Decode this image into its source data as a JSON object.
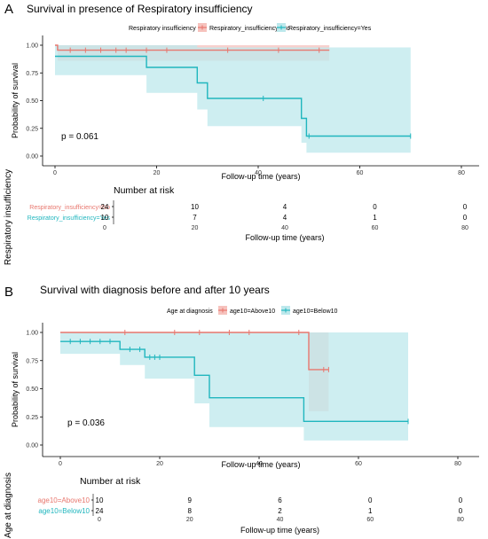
{
  "colors": {
    "red": "#e8776e",
    "teal": "#20b6be",
    "red_fill": "#f6c2bd",
    "teal_fill": "#bde8ec",
    "overlap_fill": "#bcbcbc"
  },
  "panels": [
    {
      "letter": "A",
      "title": "Survival in presence of Respiratory insufficiency",
      "legend_title": "Respiratory insufficiency",
      "pvalue": "p = 0.061",
      "risk_title": "Number at risk",
      "strata_axis_label": "Respiratory insufficiency"
    },
    {
      "letter": "B",
      "title": "Survival with diagnosis before and after 10 years",
      "legend_title": "Age at diagnosis",
      "pvalue": "p = 0.036",
      "risk_title": "Number at risk",
      "strata_axis_label": "Age at diagnosis"
    }
  ],
  "chart_data": [
    {
      "type": "line",
      "subtype": "kaplan-meier",
      "title": "Survival in presence of Respiratory insufficiency",
      "xlabel": "Follow-up time (years)",
      "ylabel": "Probability of survival",
      "xlim": [
        0,
        80
      ],
      "ylim": [
        0,
        1
      ],
      "xticks": [
        "0",
        "20",
        "40",
        "60",
        "80"
      ],
      "yticks": [
        "0.00",
        "0.25",
        "0.50",
        "0.75",
        "1.00"
      ],
      "legend_placement": "top",
      "series": [
        {
          "name": "Respiratory_insufficiency=No",
          "color": "#e8776e",
          "steps": [
            [
              0,
              1.0
            ],
            [
              0.5,
              0.955
            ],
            [
              54,
              0.955
            ]
          ],
          "ci": [
            [
              0,
              1.0,
              1.0
            ],
            [
              0.5,
              1.0,
              0.86
            ],
            [
              54,
              1.0,
              0.86
            ]
          ],
          "censors": [
            [
              3,
              0.955
            ],
            [
              6,
              0.955
            ],
            [
              9,
              0.955
            ],
            [
              12,
              0.955
            ],
            [
              14,
              0.955
            ],
            [
              18,
              0.955
            ],
            [
              22,
              0.955
            ],
            [
              34,
              0.955
            ],
            [
              44,
              0.955
            ],
            [
              52,
              0.955
            ]
          ]
        },
        {
          "name": "Respiratory_insufficiency=Yes",
          "color": "#20b6be",
          "steps": [
            [
              0,
              0.9
            ],
            [
              18,
              0.8
            ],
            [
              28,
              0.66
            ],
            [
              30,
              0.52
            ],
            [
              48.5,
              0.34
            ],
            [
              49.5,
              0.18
            ],
            [
              70,
              0.18
            ]
          ],
          "ci": [
            [
              0,
              1.0,
              0.73
            ],
            [
              18,
              1.0,
              0.57
            ],
            [
              28,
              0.98,
              0.42
            ],
            [
              30,
              0.98,
              0.27
            ],
            [
              48.5,
              0.98,
              0.12
            ],
            [
              49.5,
              0.98,
              0.03
            ],
            [
              70,
              0.98,
              0.03
            ]
          ],
          "censors": [
            [
              41,
              0.52
            ],
            [
              50,
              0.18
            ],
            [
              70,
              0.18
            ]
          ]
        }
      ],
      "risk_table": {
        "title": "Number at risk",
        "xlabel": "Follow-up time (years)",
        "times": [
          "0",
          "20",
          "40",
          "60",
          "80"
        ],
        "rows": [
          {
            "name": "Respiratory_insufficiency=No",
            "counts": [
              "24",
              "10",
              "4",
              "0",
              "0"
            ]
          },
          {
            "name": "Respiratory_insufficiency=Yes",
            "counts": [
              "10",
              "7",
              "4",
              "1",
              "0"
            ]
          }
        ]
      }
    },
    {
      "type": "line",
      "subtype": "kaplan-meier",
      "title": "Survival with diagnosis before and after 10 years",
      "xlabel": "Follow-up time (years)",
      "ylabel": "Probability of survival",
      "xlim": [
        0,
        80
      ],
      "ylim": [
        0,
        1
      ],
      "xticks": [
        "0",
        "20",
        "40",
        "60",
        "80"
      ],
      "yticks": [
        "0.00",
        "0.25",
        "0.50",
        "0.75",
        "1.00"
      ],
      "legend_placement": "top",
      "series": [
        {
          "name": "age10=Above10",
          "color": "#e8776e",
          "steps": [
            [
              0,
              1.0
            ],
            [
              49,
              1.0
            ],
            [
              50,
              0.67
            ],
            [
              54,
              0.67
            ]
          ],
          "ci": [
            [
              0,
              1.0,
              1.0
            ],
            [
              49,
              1.0,
              1.0
            ],
            [
              50,
              1.0,
              0.3
            ],
            [
              54,
              1.0,
              0.3
            ]
          ],
          "censors": [
            [
              13,
              1.0
            ],
            [
              23,
              1.0
            ],
            [
              28,
              1.0
            ],
            [
              34,
              1.0
            ],
            [
              38,
              1.0
            ],
            [
              48,
              1.0
            ],
            [
              53,
              0.67
            ],
            [
              54,
              0.67
            ]
          ]
        },
        {
          "name": "age10=Below10",
          "color": "#20b6be",
          "steps": [
            [
              0,
              0.92
            ],
            [
              12,
              0.85
            ],
            [
              17,
              0.78
            ],
            [
              27,
              0.62
            ],
            [
              30,
              0.42
            ],
            [
              49,
              0.21
            ],
            [
              70,
              0.21
            ]
          ],
          "ci": [
            [
              0,
              1.0,
              0.81
            ],
            [
              12,
              1.0,
              0.71
            ],
            [
              17,
              1.0,
              0.59
            ],
            [
              27,
              1.0,
              0.37
            ],
            [
              30,
              1.0,
              0.16
            ],
            [
              49,
              1.0,
              0.04
            ],
            [
              70,
              1.0,
              0.04
            ]
          ],
          "censors": [
            [
              2,
              0.92
            ],
            [
              4,
              0.92
            ],
            [
              6,
              0.92
            ],
            [
              8,
              0.92
            ],
            [
              10,
              0.92
            ],
            [
              14,
              0.85
            ],
            [
              16,
              0.85
            ],
            [
              18,
              0.78
            ],
            [
              19,
              0.78
            ],
            [
              20,
              0.78
            ],
            [
              70,
              0.21
            ]
          ]
        }
      ],
      "risk_table": {
        "title": "Number at risk",
        "xlabel": "Follow-up time (years)",
        "times": [
          "0",
          "20",
          "40",
          "60",
          "80"
        ],
        "rows": [
          {
            "name": "age10=Above10",
            "counts": [
              "10",
              "9",
              "6",
              "0",
              "0"
            ]
          },
          {
            "name": "age10=Below10",
            "counts": [
              "24",
              "8",
              "2",
              "1",
              "0"
            ]
          }
        ]
      }
    }
  ]
}
